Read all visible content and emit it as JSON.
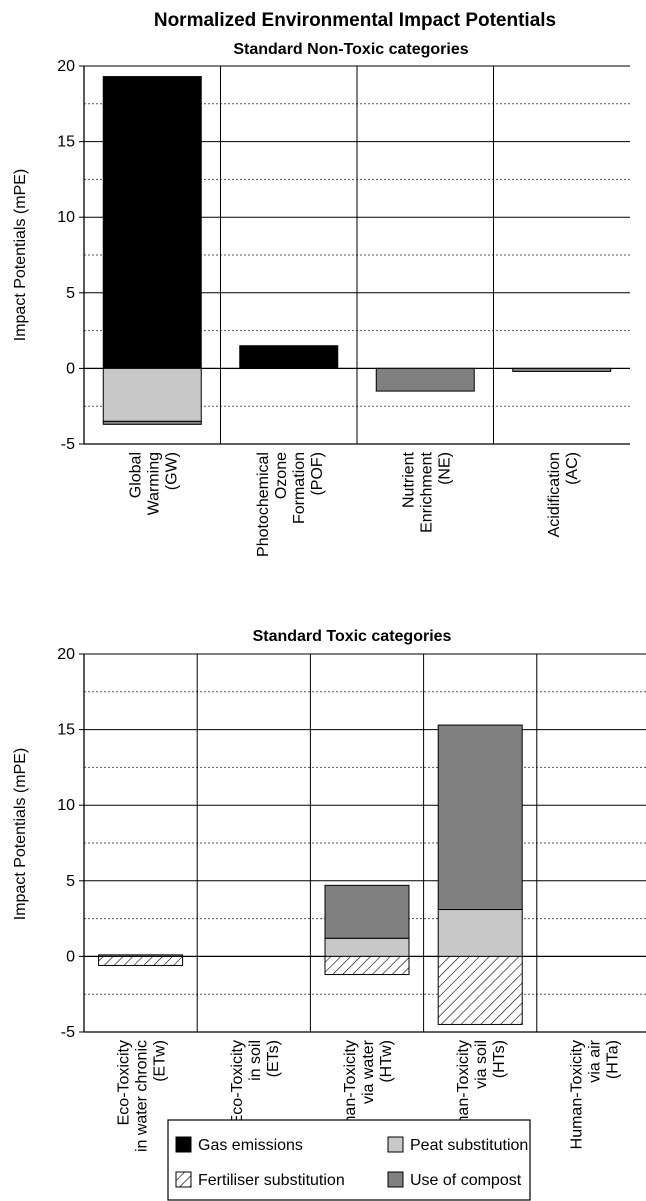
{
  "figure": {
    "title": "Normalized Environmental Impact Potentials"
  },
  "legend": {
    "items": [
      {
        "key": "gas",
        "label": "Gas emissions",
        "color": "#000000",
        "pattern": "solid"
      },
      {
        "key": "peat",
        "label": "Peat substitution",
        "color": "#c8c8c8",
        "pattern": "solid"
      },
      {
        "key": "fert",
        "label": "Fertiliser substitution",
        "color": "#ffffff",
        "pattern": "hatch"
      },
      {
        "key": "compost",
        "label": "Use of compost",
        "color": "#808080",
        "pattern": "solid"
      }
    ]
  },
  "chart_data": [
    {
      "type": "bar",
      "stacked": true,
      "subtitle": "Standard Non-Toxic categories",
      "ylabel": "Impact Potentials (mPE)",
      "ylim": [
        -5,
        20
      ],
      "yticks": [
        -5,
        0,
        5,
        10,
        15,
        20
      ],
      "grid": "dotted horizontal at 2.5 intervals",
      "categories": [
        [
          "Global",
          "Warming",
          "(GW)"
        ],
        [
          "Photochemical",
          "Ozone",
          "Formation",
          "(POF)"
        ],
        [
          "Nutrient",
          "Enrichment",
          "(NE)"
        ],
        [
          "Acidification",
          "(AC)"
        ]
      ],
      "series": [
        {
          "name": "Gas emissions",
          "key": "gas",
          "values": [
            19.3,
            1.5,
            0,
            0
          ]
        },
        {
          "name": "Peat substitution",
          "key": "peat",
          "values": [
            -3.5,
            0,
            0,
            0
          ]
        },
        {
          "name": "Fertiliser substitution",
          "key": "fert",
          "values": [
            0,
            0,
            0,
            0
          ]
        },
        {
          "name": "Use of compost",
          "key": "compost",
          "values": [
            -0.2,
            0,
            -1.5,
            -0.2
          ]
        }
      ]
    },
    {
      "type": "bar",
      "stacked": true,
      "subtitle": "Standard Toxic categories",
      "ylabel": "Impact Potentials (mPE)",
      "ylim": [
        -5,
        20
      ],
      "yticks": [
        -5,
        0,
        5,
        10,
        15,
        20
      ],
      "grid": "dotted horizontal at 2.5 intervals",
      "categories": [
        [
          "Eco-Toxicity",
          "in water chronic",
          "(ETw)"
        ],
        [
          "Eco-Toxicity",
          "in soil",
          "(ETs)"
        ],
        [
          "Human-Toxicity",
          "via water",
          "(HTw)"
        ],
        [
          "Human-Toxicity",
          "via soil",
          "(HTs)"
        ],
        [
          "Human-Toxicity",
          "via air",
          "(HTa)"
        ]
      ],
      "series": [
        {
          "name": "Gas emissions",
          "key": "gas",
          "values": [
            0,
            0,
            0,
            0,
            0
          ]
        },
        {
          "name": "Peat substitution",
          "key": "peat",
          "values": [
            0,
            0,
            1.2,
            3.1,
            0
          ]
        },
        {
          "name": "Fertiliser substitution",
          "key": "fert",
          "values": [
            -0.6,
            0,
            -1.2,
            -4.5,
            0
          ]
        },
        {
          "name": "Use of compost",
          "key": "compost",
          "values": [
            0.1,
            0,
            3.5,
            12.2,
            0
          ]
        }
      ]
    }
  ]
}
